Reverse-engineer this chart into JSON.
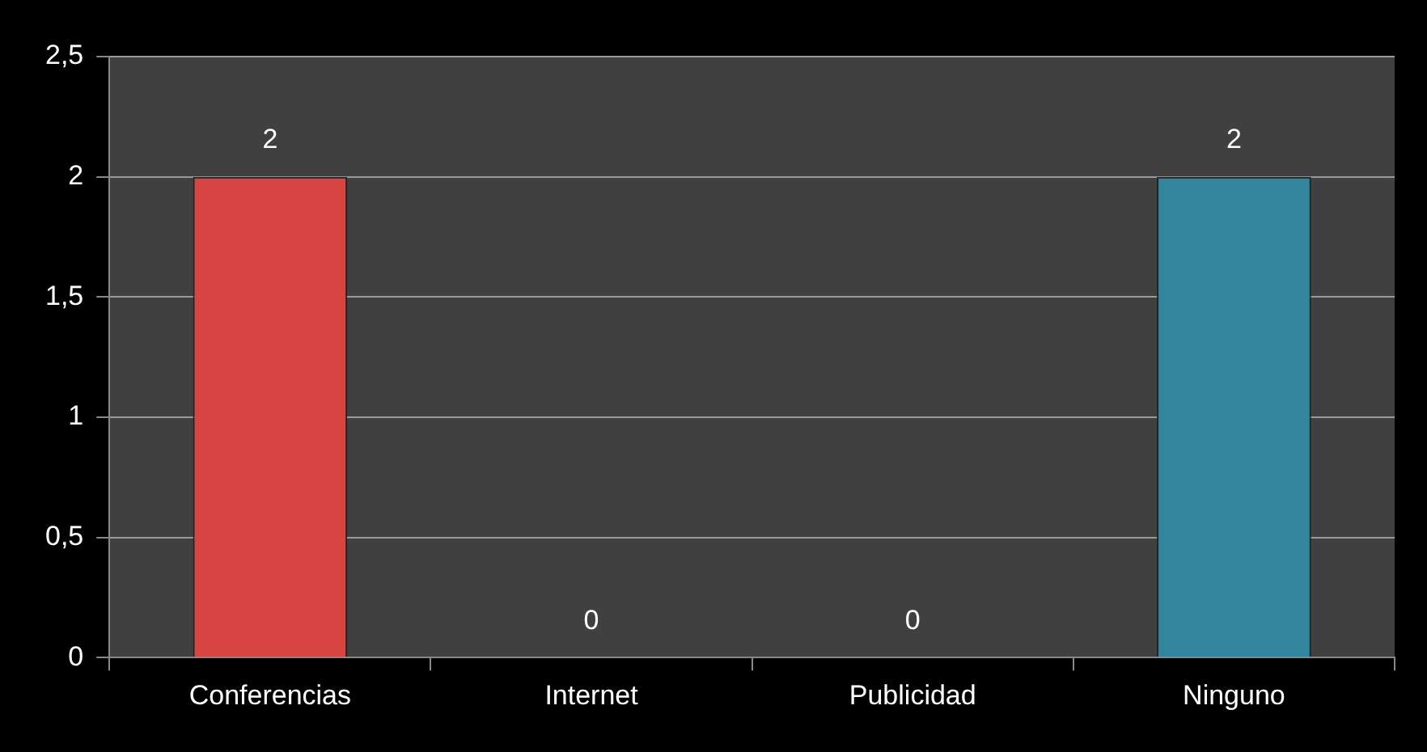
{
  "chart_data": {
    "type": "bar",
    "categories": [
      "Conferencias",
      "Internet",
      "Publicidad",
      "Ninguno"
    ],
    "values": [
      2,
      0,
      0,
      2
    ],
    "colors": [
      "#d64541",
      "#8fb24a",
      "#7f63a2",
      "#31859c"
    ],
    "ylim": [
      0,
      2.5
    ],
    "yticks": [
      0,
      {
        "value": 0.5,
        "label": "0,5"
      },
      1,
      {
        "value": 1.5,
        "label": "1,5"
      },
      2,
      {
        "value": 2.5,
        "label": "2,5"
      }
    ],
    "grid": "y",
    "data_labels": true
  }
}
